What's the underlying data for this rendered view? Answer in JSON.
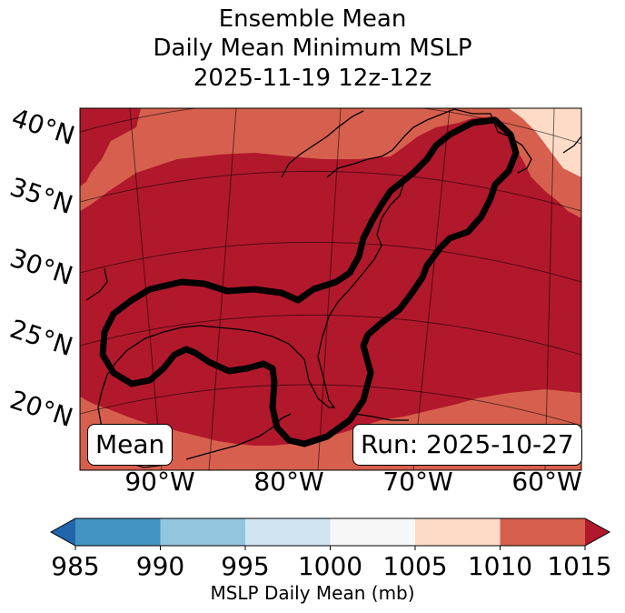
{
  "title": {
    "line1": "Ensemble Mean",
    "line2": "Daily Mean Minimum MSLP",
    "line3": "2025-11-19 12z-12z"
  },
  "map": {
    "lat_labels": [
      "40°N",
      "35°N",
      "30°N",
      "25°N",
      "20°N"
    ],
    "lon_labels": [
      "90°W",
      "80°W",
      "70°W",
      "60°W"
    ],
    "box_left": "Mean",
    "box_right": "Run: 2025-10-27",
    "fill_colors": {
      "ge_1010": "#b2182b",
      "c1005_1010": "#d6604d",
      "c1000_1005": "#fddbc7"
    }
  },
  "colorbar": {
    "label": "MSLP Daily Mean (mb)",
    "ticks": [
      "985",
      "990",
      "995",
      "1000",
      "1005",
      "1010",
      "1015"
    ],
    "colors": [
      "#2166ac",
      "#4393c3",
      "#92c5de",
      "#d1e5f0",
      "#f7f7f7",
      "#fddbc7",
      "#d6604d",
      "#b2182b"
    ]
  }
}
